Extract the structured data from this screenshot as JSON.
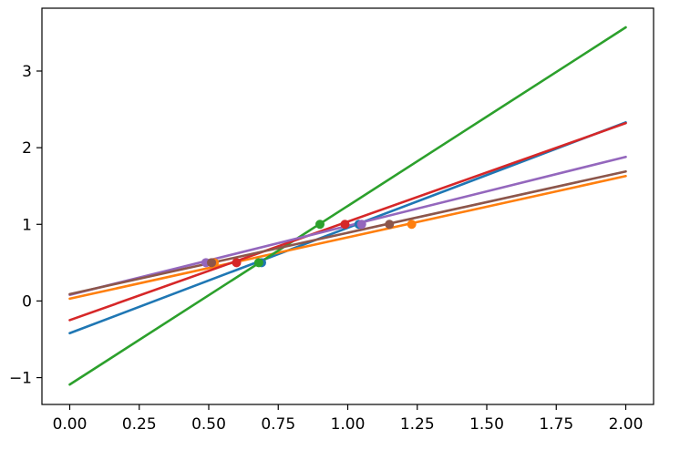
{
  "chart_data": {
    "type": "line",
    "title": "",
    "xlabel": "",
    "ylabel": "",
    "xlim": [
      -0.1,
      2.1
    ],
    "ylim": [
      -1.35,
      3.82
    ],
    "grid": false,
    "x_ticks": [
      0.0,
      0.25,
      0.5,
      0.75,
      1.0,
      1.25,
      1.5,
      1.75,
      2.0
    ],
    "x_tick_labels": [
      "0.00",
      "0.25",
      "0.50",
      "0.75",
      "1.00",
      "1.25",
      "1.50",
      "1.75",
      "2.00"
    ],
    "y_ticks": [
      -1,
      0,
      1,
      2,
      3
    ],
    "y_tick_labels": [
      "−1",
      "0",
      "1",
      "2",
      "3"
    ],
    "series": [
      {
        "color": "#1f77b4",
        "x": [
          0,
          2
        ],
        "y": [
          -0.42,
          2.33
        ],
        "points": [
          [
            0.69,
            0.5
          ],
          [
            1.04,
            1.0
          ]
        ]
      },
      {
        "color": "#ff7f0e",
        "x": [
          0,
          2
        ],
        "y": [
          0.03,
          1.63
        ],
        "points": [
          [
            0.52,
            0.5
          ],
          [
            1.23,
            1.0
          ]
        ]
      },
      {
        "color": "#2ca02c",
        "x": [
          0,
          2
        ],
        "y": [
          -1.09,
          3.57
        ],
        "points": [
          [
            0.68,
            0.5
          ],
          [
            0.9,
            1.0
          ]
        ]
      },
      {
        "color": "#d62728",
        "x": [
          0,
          2
        ],
        "y": [
          -0.25,
          2.32
        ],
        "points": [
          [
            0.6,
            0.5
          ],
          [
            0.99,
            1.0
          ]
        ]
      },
      {
        "color": "#9467bd",
        "x": [
          0,
          2
        ],
        "y": [
          0.08,
          1.88
        ],
        "points": [
          [
            0.49,
            0.5
          ],
          [
            1.05,
            1.0
          ]
        ]
      },
      {
        "color": "#8c564b",
        "x": [
          0,
          2
        ],
        "y": [
          0.09,
          1.69
        ],
        "points": [
          [
            0.51,
            0.5
          ],
          [
            1.15,
            1.0
          ]
        ]
      }
    ]
  }
}
